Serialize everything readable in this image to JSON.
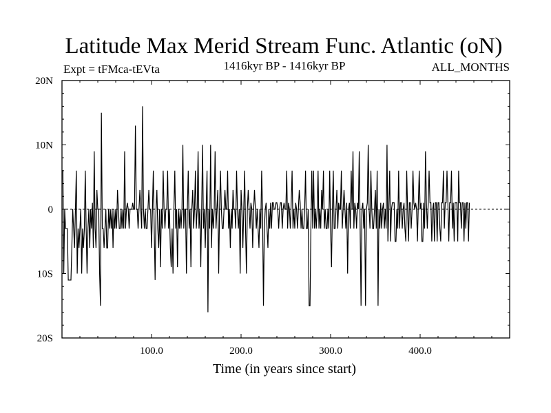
{
  "chart_data": {
    "type": "line",
    "title": "Latitude Max Merid Stream Func. Atlantic (oN)",
    "subtitle_left": "Expt = tFMca-tEVta",
    "subtitle_center": "1416kyr BP - 1416kyr BP",
    "subtitle_right": "ALL_MONTHS",
    "xlabel": "Time (in years since start)",
    "ylabel": "",
    "xlim": [
      0,
      500
    ],
    "ylim": [
      -20,
      20
    ],
    "x_ticks": [
      100,
      200,
      300,
      400
    ],
    "x_tick_labels": [
      "100.0",
      "200.0",
      "300.0",
      "400.0"
    ],
    "y_ticks": [
      -20,
      -10,
      0,
      10,
      20
    ],
    "y_tick_labels": [
      "20S",
      "10S",
      "0",
      "10N",
      "20N"
    ],
    "zero_line": true,
    "series": [
      {
        "name": "Latitude Max Merid Stream Func. Atlantic",
        "x_start": 0,
        "x_step": 1,
        "values": [
          6,
          6,
          -10,
          0,
          -3,
          -3,
          -3,
          -11,
          -11,
          -11,
          -11,
          -6,
          0,
          -3,
          -6,
          0,
          6,
          -10,
          -3,
          -6,
          -3,
          0,
          -10,
          -3,
          -6,
          -3,
          6,
          -3,
          -10,
          -3,
          0,
          -6,
          0,
          -3,
          1,
          -6,
          9,
          -3,
          -6,
          3,
          0,
          0,
          -10,
          -15,
          15,
          -3,
          -3,
          -6,
          -3,
          0,
          -6,
          -6,
          0,
          -3,
          0,
          -3,
          0,
          -6,
          0,
          -3,
          0,
          -3,
          3,
          0,
          -3,
          -3,
          0,
          -3,
          0,
          -3,
          9,
          -3,
          0,
          1,
          0,
          -3,
          0,
          0,
          0,
          1,
          0,
          0,
          13,
          0,
          0,
          -3,
          0,
          3,
          0,
          -3,
          16,
          0,
          -3,
          0,
          -3,
          -3,
          0,
          3,
          0,
          0,
          -6,
          0,
          6,
          -3,
          -11,
          0,
          3,
          -3,
          -6,
          0,
          -9,
          0,
          -3,
          6,
          0,
          -3,
          0,
          0,
          6,
          -3,
          0,
          -6,
          -9,
          -3,
          -10,
          0,
          6,
          -3,
          0,
          -9,
          0,
          -3,
          0,
          -3,
          0,
          10,
          -3,
          0,
          0,
          -10,
          0,
          6,
          -3,
          0,
          -9,
          0,
          3,
          -3,
          0,
          6,
          -3,
          0,
          9,
          -3,
          0,
          -9,
          0,
          10,
          -3,
          0,
          -6,
          0,
          6,
          -16,
          0,
          -3,
          10,
          -6,
          0,
          -3,
          0,
          9,
          -3,
          0,
          3,
          -10,
          0,
          6,
          0,
          -3,
          -3,
          0,
          3,
          0,
          0,
          6,
          -3,
          0,
          -6,
          0,
          -3,
          3,
          0,
          0,
          -3,
          6,
          0,
          -3,
          0,
          -10,
          3,
          0,
          -6,
          0,
          6,
          -3,
          -10,
          0,
          3,
          0,
          -3,
          1,
          0,
          -6,
          0,
          3,
          0,
          -3,
          0,
          -3,
          -6,
          0,
          -3,
          6,
          0,
          -15,
          -3,
          0,
          1,
          -3,
          -6,
          0,
          -3,
          1,
          -3,
          1,
          1,
          0,
          0,
          1,
          1,
          0,
          -3,
          0,
          1,
          1,
          -3,
          0,
          1,
          0,
          0,
          6,
          -3,
          1,
          0,
          -3,
          1,
          6,
          -3,
          0,
          -3,
          1,
          0,
          -3,
          0,
          3,
          1,
          -3,
          0,
          -3,
          -3,
          0,
          6,
          -3,
          -3,
          0,
          -15,
          -15,
          -3,
          6,
          -3,
          6,
          -3,
          0,
          -3,
          0,
          6,
          -3,
          0,
          -3,
          3,
          0,
          6,
          -3,
          0,
          -3,
          -3,
          0,
          -3,
          6,
          -3,
          -9,
          0,
          6,
          -3,
          -3,
          0,
          3,
          -3,
          1,
          0,
          0,
          6,
          -3,
          0,
          3,
          0,
          -3,
          1,
          -10,
          0,
          1,
          -3,
          6,
          0,
          9,
          -3,
          1,
          0,
          -3,
          1,
          0,
          9,
          -3,
          -15,
          0,
          1,
          -3,
          0,
          -15,
          0,
          1,
          10,
          0,
          -3,
          6,
          0,
          -3,
          -3,
          0,
          3,
          -3,
          6,
          -15,
          0,
          -3,
          1,
          -3,
          0,
          1,
          -3,
          0,
          -3,
          10,
          -5,
          0,
          6,
          -5,
          0,
          1,
          1,
          1,
          -5,
          -5,
          0,
          -3,
          6,
          -3,
          1,
          1,
          -3,
          0,
          1,
          -3,
          -5,
          6,
          0,
          -5,
          1,
          1,
          -3,
          0,
          6,
          1,
          0,
          1,
          0,
          -5,
          1,
          6,
          0,
          1,
          -5,
          -5,
          1,
          -3,
          9,
          1,
          -3,
          1,
          6,
          1,
          1,
          -5,
          0,
          1,
          -5,
          1,
          1,
          -5,
          1,
          1,
          -3,
          -5,
          1,
          1,
          6,
          -3,
          1,
          1,
          6,
          1,
          -5,
          1,
          1,
          6,
          -3,
          1,
          -5,
          1,
          1,
          1,
          -5,
          6,
          1,
          1,
          -3,
          1,
          1,
          -5,
          1,
          -3,
          1,
          1,
          -5,
          1
        ]
      }
    ]
  }
}
